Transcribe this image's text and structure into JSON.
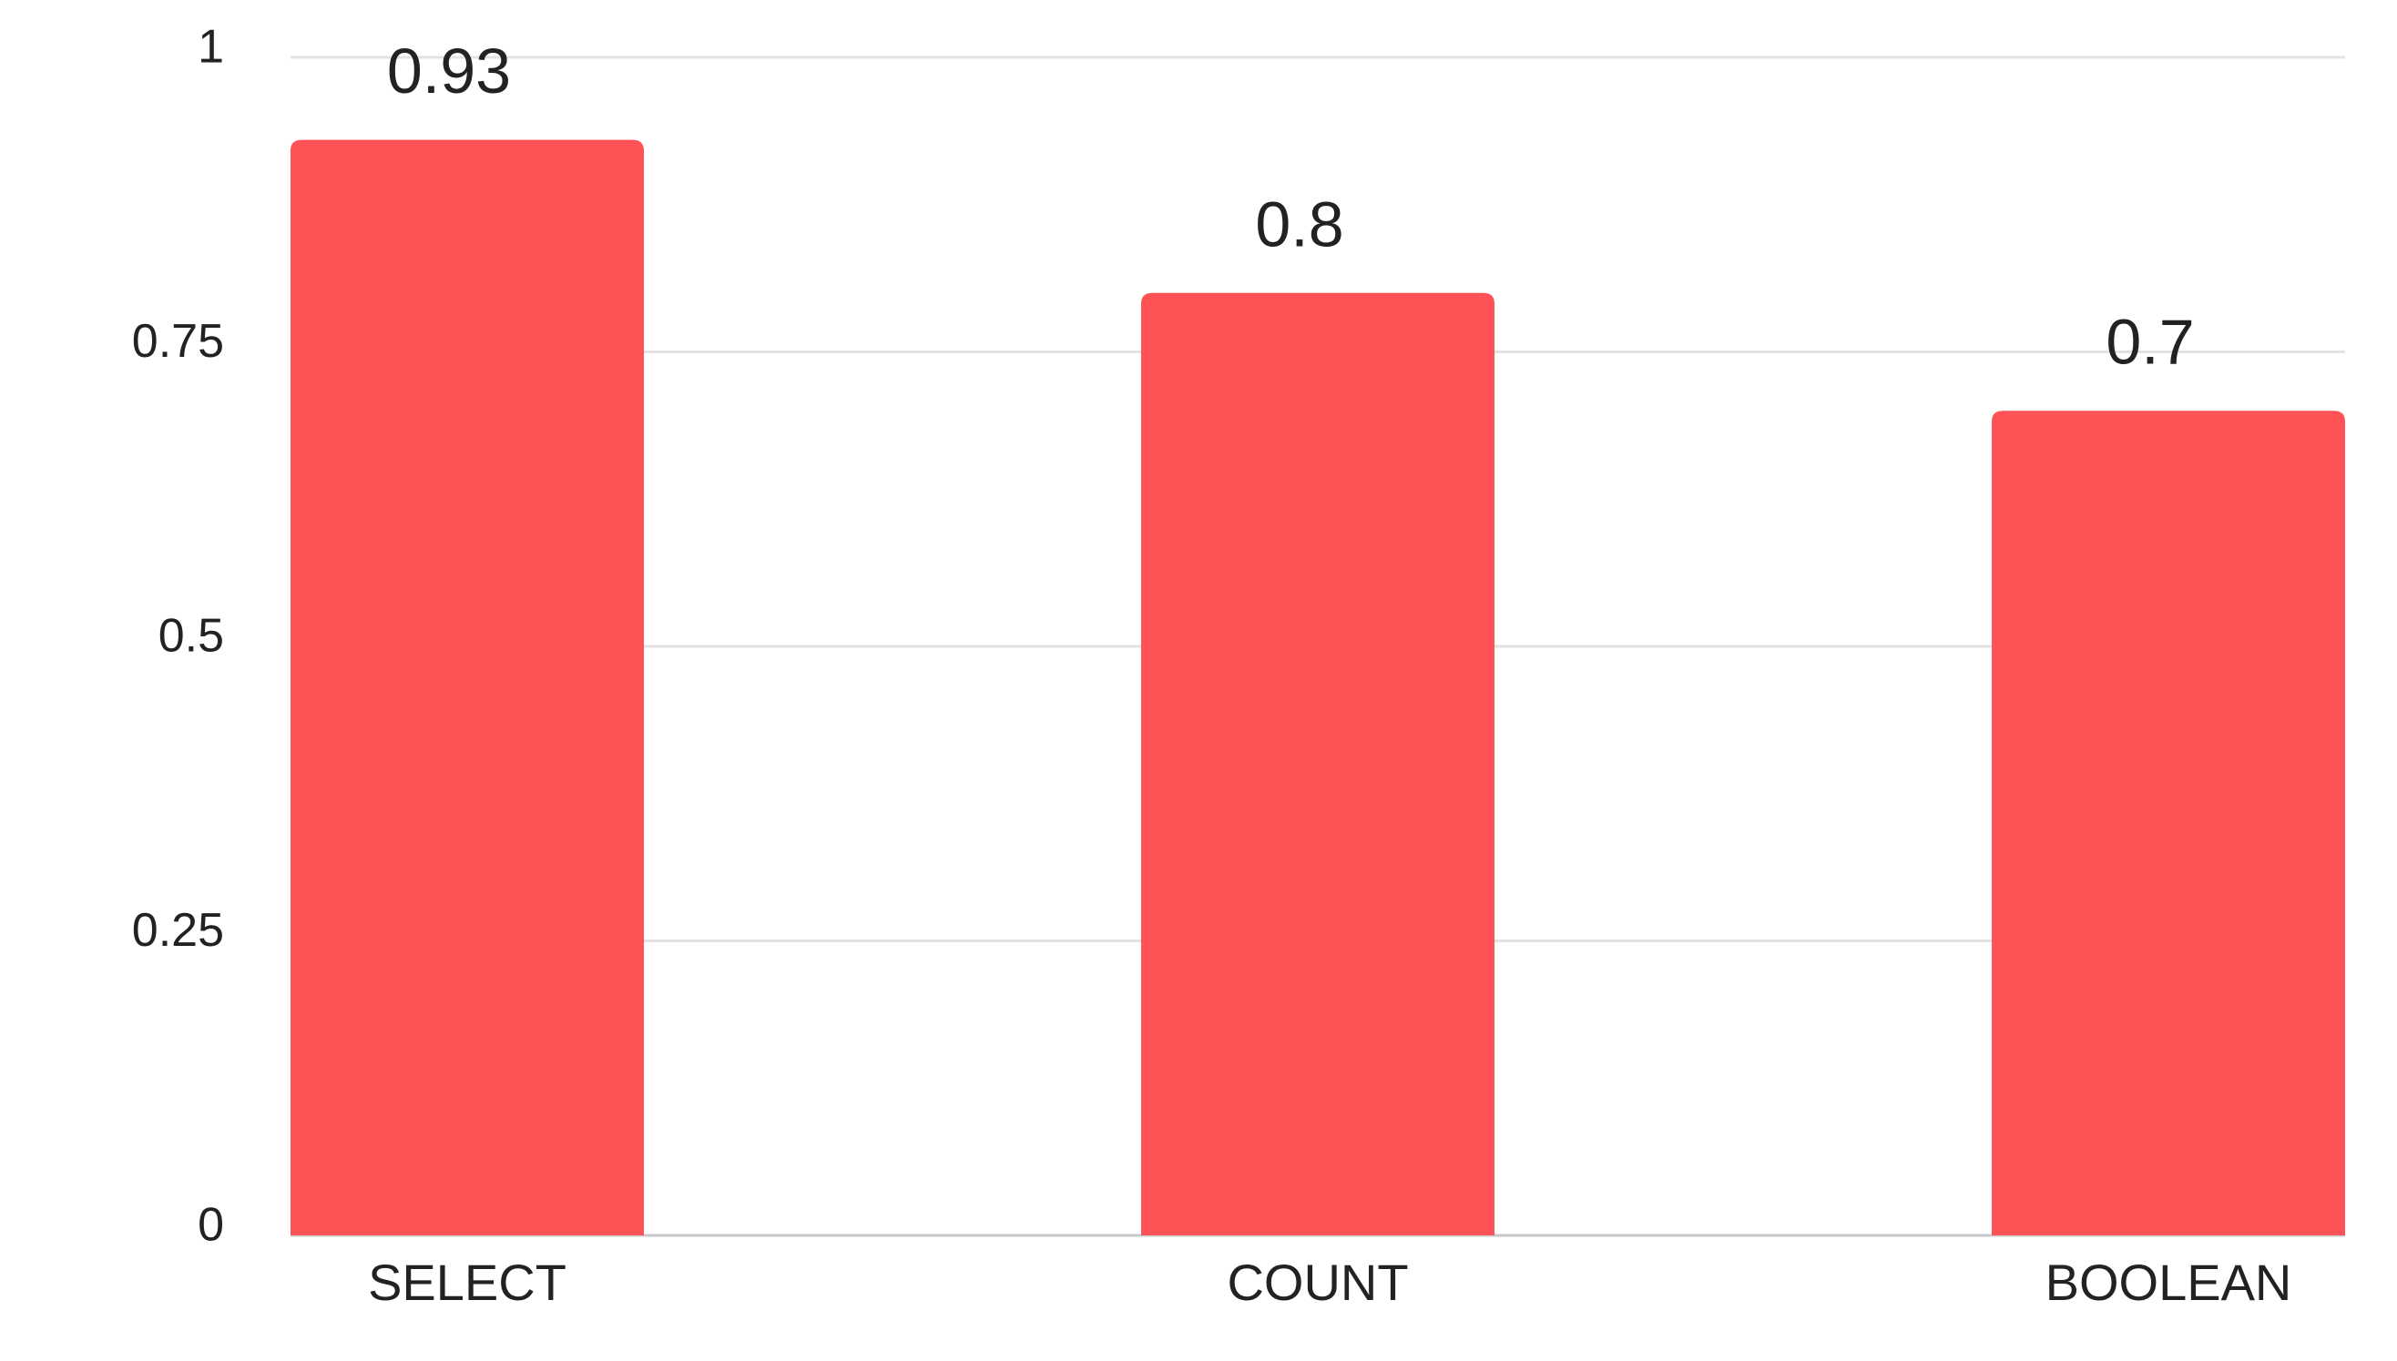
{
  "chart_data": {
    "type": "bar",
    "categories": [
      "SELECT",
      "COUNT",
      "BOOLEAN"
    ],
    "values": [
      0.93,
      0.8,
      0.7
    ],
    "color": "#ff5257",
    "ylim": [
      0,
      1
    ],
    "yticks": [
      0,
      0.25,
      0.5,
      0.75,
      1
    ],
    "grid": true
  }
}
